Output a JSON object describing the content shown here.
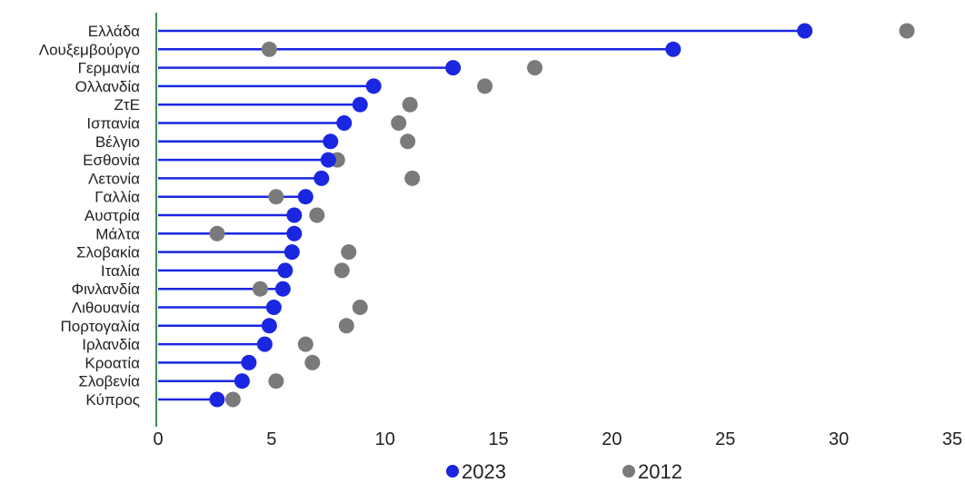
{
  "chart_data": {
    "type": "scatter",
    "subtype": "lollipop",
    "title": "",
    "xlabel": "",
    "ylabel": "",
    "xlim": [
      0,
      35
    ],
    "x_ticks": [
      "0",
      "5",
      "10",
      "15",
      "20",
      "25",
      "30",
      "35"
    ],
    "grid": false,
    "legend_position": "bottom",
    "categories": [
      "Ελλάδα",
      "Λουξεμβούργο",
      "Γερμανία",
      "Ολλανδία",
      "ΖτΕ",
      "Ισπανία",
      "Βέλγιο",
      "Εσθονία",
      "Λετονία",
      "Γαλλία",
      "Αυστρία",
      "Μάλτα",
      "Σλοβακία",
      "Ιταλία",
      "Φινλανδία",
      "Λιθουανία",
      "Πορτογαλία",
      "Ιρλανδία",
      "Κροατία",
      "Σλοβενία",
      "Κύπρος"
    ],
    "series": [
      {
        "name": "2023",
        "color": "#1a26e0",
        "values": [
          28.5,
          22.7,
          13.0,
          9.5,
          8.9,
          8.2,
          7.6,
          7.5,
          7.2,
          6.5,
          6.0,
          6.0,
          5.9,
          5.6,
          5.5,
          5.1,
          4.9,
          4.7,
          4.0,
          3.7,
          2.6
        ]
      },
      {
        "name": "2012",
        "color": "#7a7a7a",
        "values": [
          33.0,
          4.9,
          16.6,
          14.4,
          11.1,
          10.6,
          11.0,
          7.9,
          11.2,
          5.2,
          7.0,
          2.6,
          8.4,
          8.1,
          4.5,
          8.9,
          8.3,
          6.5,
          6.8,
          5.2,
          3.3
        ]
      }
    ],
    "axis_color": "#3f8f4f"
  }
}
